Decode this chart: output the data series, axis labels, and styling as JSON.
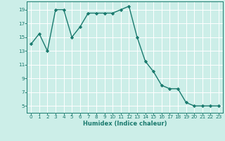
{
  "x": [
    0,
    1,
    2,
    3,
    4,
    5,
    6,
    7,
    8,
    9,
    10,
    11,
    12,
    13,
    14,
    15,
    16,
    17,
    18,
    19,
    20,
    21,
    22,
    23
  ],
  "y": [
    14,
    15.5,
    13,
    19,
    19,
    15,
    16.5,
    18.5,
    18.5,
    18.5,
    18.5,
    19,
    19.5,
    15,
    11.5,
    10,
    8,
    7.5,
    7.5,
    5.5,
    5,
    5,
    5,
    5
  ],
  "line_color": "#1a7a6e",
  "marker": "D",
  "markersize": 2.2,
  "linewidth": 1.0,
  "xlabel": "Humidex (Indice chaleur)",
  "background_color": "#cceee8",
  "grid_color": "#ffffff",
  "ylim": [
    4,
    20.2
  ],
  "xlim": [
    -0.5,
    23.5
  ],
  "yticks": [
    5,
    7,
    9,
    11,
    13,
    15,
    17,
    19
  ],
  "xtick_labels": [
    "0",
    "1",
    "2",
    "3",
    "4",
    "5",
    "6",
    "7",
    "8",
    "9",
    "10",
    "11",
    "12",
    "13",
    "14",
    "15",
    "16",
    "17",
    "18",
    "19",
    "20",
    "21",
    "22",
    "23"
  ],
  "xlabel_fontsize": 6.0,
  "tick_fontsize": 5.2
}
